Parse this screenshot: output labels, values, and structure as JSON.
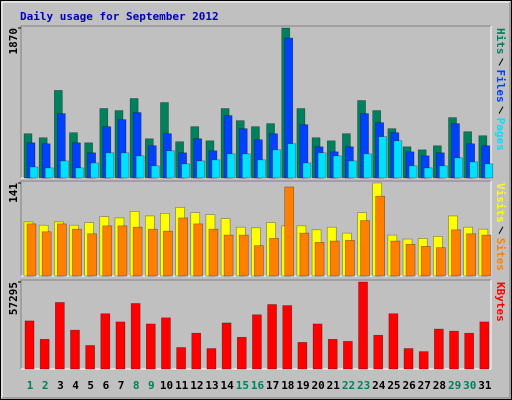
{
  "title": "Daily usage for September 2012",
  "chart_data": [
    {
      "type": "bar",
      "ylim": [
        0,
        1870
      ],
      "yticks": [
        1870
      ],
      "series": [
        {
          "name": "Hits",
          "color": "#00805c",
          "values": [
            552,
            502,
            1092,
            565,
            439,
            866,
            841,
            991,
            489,
            941,
            452,
            640,
            464,
            866,
            715,
            640,
            678,
            1870,
            866,
            502,
            464,
            552,
            966,
            841,
            615,
            389,
            351,
            402,
            753,
            577,
            527
          ]
        },
        {
          "name": "Files",
          "color": "#0040ff",
          "values": [
            439,
            427,
            803,
            439,
            314,
            640,
            728,
            816,
            402,
            552,
            314,
            489,
            339,
            778,
            615,
            477,
            552,
            1745,
            665,
            389,
            326,
            389,
            803,
            690,
            565,
            326,
            276,
            314,
            678,
            427,
            402
          ]
        },
        {
          "name": "Pages",
          "color": "#00e0ff",
          "values": [
            138,
            126,
            213,
            126,
            188,
            314,
            314,
            276,
            151,
            339,
            176,
            213,
            226,
            301,
            301,
            226,
            351,
            427,
            188,
            314,
            276,
            213,
            301,
            515,
            464,
            151,
            126,
            151,
            251,
            201,
            176
          ]
        }
      ]
    },
    {
      "type": "bar",
      "ylim": [
        0,
        141
      ],
      "yticks": [
        141
      ],
      "series": [
        {
          "name": "Visits",
          "color": "#ffff00",
          "values": [
            82,
            77,
            82,
            77,
            81,
            90,
            88,
            98,
            91,
            95,
            104,
            96,
            93,
            87,
            74,
            73,
            81,
            76,
            76,
            70,
            74,
            65,
            96,
            141,
            62,
            56,
            57,
            60,
            91,
            74,
            71
          ]
        },
        {
          "name": "Sites",
          "color": "#ff8000",
          "values": [
            79,
            67,
            79,
            71,
            64,
            76,
            76,
            74,
            71,
            68,
            88,
            79,
            71,
            62,
            62,
            46,
            57,
            135,
            65,
            51,
            53,
            54,
            84,
            121,
            53,
            48,
            45,
            43,
            70,
            64,
            62
          ]
        }
      ]
    },
    {
      "type": "bar",
      "ylim": [
        0,
        57295
      ],
      "yticks": [
        57295
      ],
      "categories": [
        "1",
        "2",
        "3",
        "4",
        "5",
        "6",
        "7",
        "8",
        "9",
        "10",
        "11",
        "12",
        "13",
        "14",
        "15",
        "16",
        "17",
        "18",
        "19",
        "20",
        "21",
        "22",
        "23",
        "24",
        "25",
        "26",
        "27",
        "28",
        "29",
        "30",
        "31"
      ],
      "category_colors": [
        "#00805c",
        "#00805c",
        "#000000",
        "#000000",
        "#000000",
        "#000000",
        "#000000",
        "#00805c",
        "#00805c",
        "#000000",
        "#000000",
        "#000000",
        "#000000",
        "#000000",
        "#00805c",
        "#00805c",
        "#000000",
        "#000000",
        "#000000",
        "#000000",
        "#000000",
        "#00805c",
        "#00805c",
        "#000000",
        "#000000",
        "#000000",
        "#000000",
        "#000000",
        "#00805c",
        "#00805c",
        "#000000"
      ],
      "series": [
        {
          "name": "KBytes",
          "color": "#ff0000",
          "values": [
            31680,
            19550,
            43820,
            25610,
            15500,
            36400,
            31010,
            43150,
            29660,
            33700,
            14150,
            23590,
            13480,
            30330,
            20900,
            35720,
            42470,
            41790,
            17530,
            29660,
            19550,
            18200,
            57295,
            22240,
            36400,
            13480,
            11460,
            26290,
            24940,
            23590,
            31010
          ]
        }
      ]
    }
  ]
}
